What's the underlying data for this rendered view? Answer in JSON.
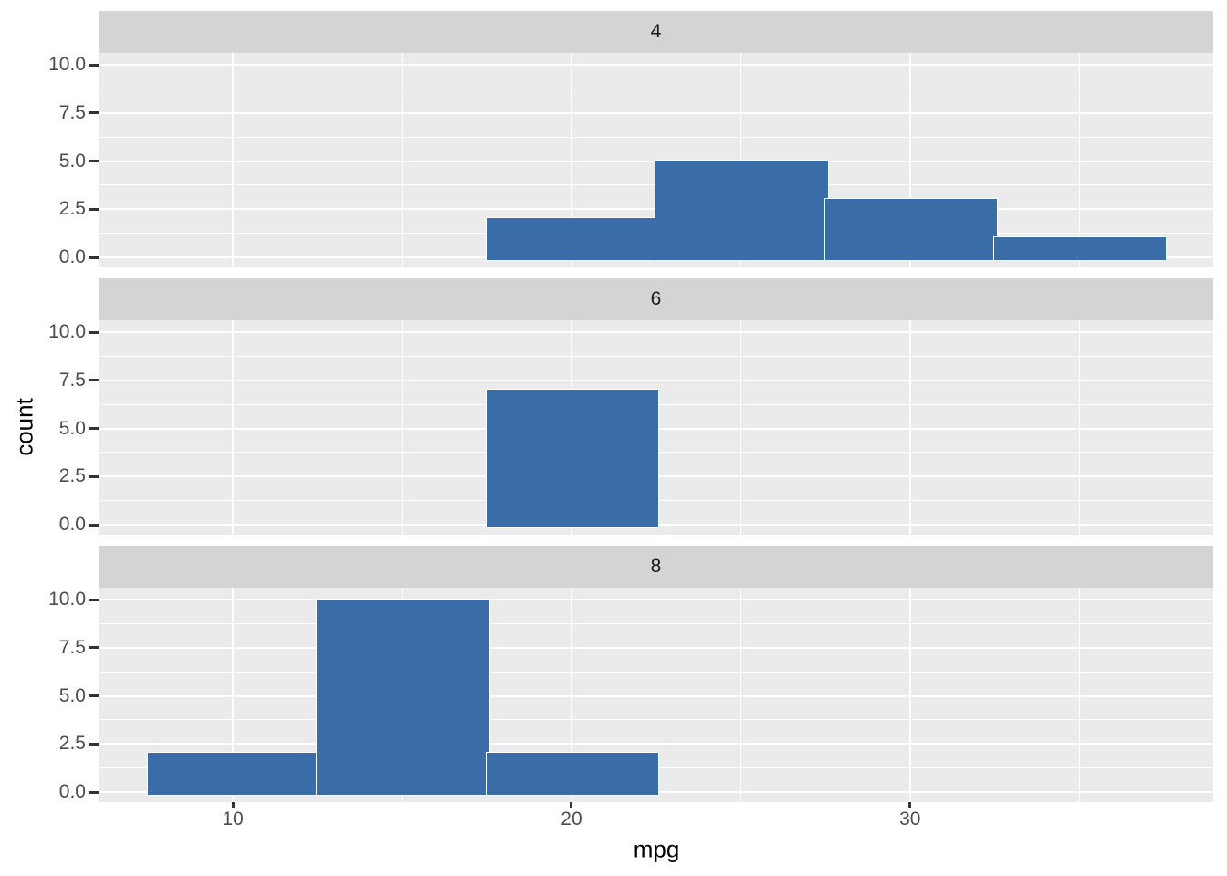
{
  "chart_data": {
    "type": "histogram",
    "title": "",
    "xlabel": "mpg",
    "ylabel": "count",
    "facet_layout": "rows",
    "facets": [
      {
        "label": "4",
        "counts": [
          0,
          0,
          2,
          5,
          3,
          1
        ]
      },
      {
        "label": "6",
        "counts": [
          0,
          0,
          7,
          0,
          0,
          0
        ]
      },
      {
        "label": "8",
        "counts": [
          2,
          10,
          2,
          0,
          0,
          0
        ]
      }
    ],
    "bin_edges": [
      7.5,
      12.5,
      17.5,
      22.5,
      27.5,
      32.5,
      37.5
    ],
    "x_axis": {
      "range": [
        6.03,
        38.96
      ],
      "ticks": [
        {
          "value": 10,
          "label": "10"
        },
        {
          "value": 20,
          "label": "20"
        },
        {
          "value": 30,
          "label": "30"
        }
      ],
      "minor_ticks": [
        15,
        25,
        35
      ]
    },
    "y_axis": {
      "range": [
        -0.52,
        10.62
      ],
      "ticks": [
        {
          "value": 10,
          "label": "10.0"
        },
        {
          "value": 7.5,
          "label": "7.5"
        },
        {
          "value": 5,
          "label": "5.0"
        },
        {
          "value": 2.5,
          "label": "2.5"
        },
        {
          "value": 0,
          "label": "0.0"
        }
      ],
      "minor_ticks": [
        8.75,
        6.25,
        3.75,
        1.25
      ]
    },
    "grid": true,
    "legend": null,
    "colors": {
      "bar_fill": "#3A6DA8",
      "bar_stroke": "#FFFFFF",
      "panel_bg": "#EBEBEB",
      "strip_bg": "#D4D4D4",
      "grid": "#FFFFFF",
      "tick_label": "#4D4D4D",
      "strip_label": "#1A1A1A",
      "axis_title": "#000000",
      "tick_mark": "#333333",
      "figure_bg": "#FFFFFF"
    }
  }
}
